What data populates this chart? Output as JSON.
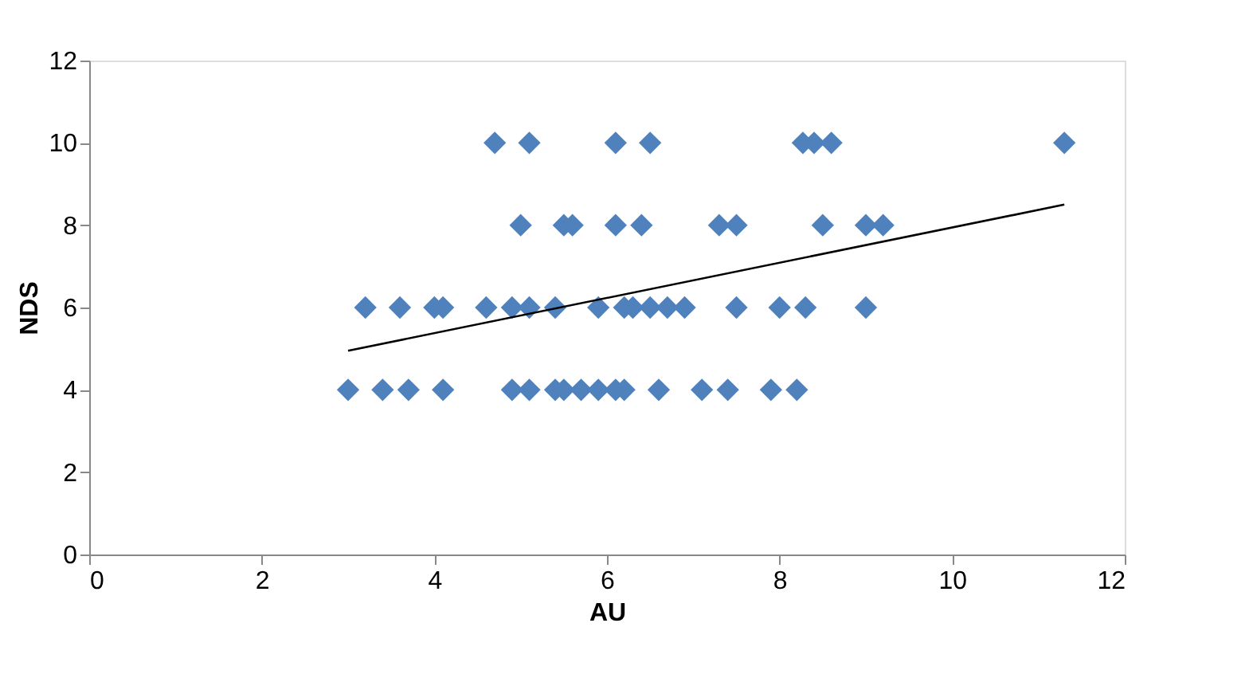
{
  "chart_data": {
    "type": "scatter",
    "xlabel": "AU",
    "ylabel": "NDS",
    "xlim": [
      0,
      12
    ],
    "ylim": [
      0,
      12
    ],
    "xticks": [
      0,
      2,
      4,
      6,
      8,
      10,
      12
    ],
    "yticks": [
      0,
      2,
      4,
      6,
      8,
      10,
      12
    ],
    "grid": false,
    "series": [
      {
        "marker": "diamond",
        "color": "#4f81bd",
        "x": [
          4.7,
          5.1,
          6.1,
          6.5,
          8.27,
          8.4,
          8.6,
          11.3,
          5.0,
          5.5,
          5.6,
          6.1,
          6.4,
          7.3,
          7.5,
          8.5,
          9.0,
          9.2,
          3.2,
          3.6,
          4.0,
          4.1,
          4.6,
          4.9,
          5.1,
          5.4,
          5.9,
          6.2,
          6.3,
          6.5,
          6.7,
          6.9,
          7.5,
          8.0,
          8.3,
          9.0,
          3.0,
          3.4,
          3.7,
          4.1,
          4.9,
          5.1,
          5.4,
          5.5,
          5.7,
          5.9,
          6.1,
          6.2,
          6.6,
          7.1,
          7.4,
          7.9,
          8.2
        ],
        "values": [
          10,
          10,
          10,
          10,
          10,
          10,
          10,
          10,
          8,
          8,
          8,
          8,
          8,
          8,
          8,
          8,
          8,
          8,
          6,
          6,
          6,
          6,
          6,
          6,
          6,
          6,
          6,
          6,
          6,
          6,
          6,
          6,
          6,
          6,
          6,
          6,
          4,
          4,
          4,
          4,
          4,
          4,
          4,
          4,
          4,
          4,
          4,
          4,
          4,
          4,
          4,
          4,
          4
        ]
      },
      {
        "type": "line",
        "marker": "none",
        "color": "#000000",
        "x": [
          3.0,
          11.3
        ],
        "values": [
          4.95,
          8.5
        ]
      }
    ]
  }
}
